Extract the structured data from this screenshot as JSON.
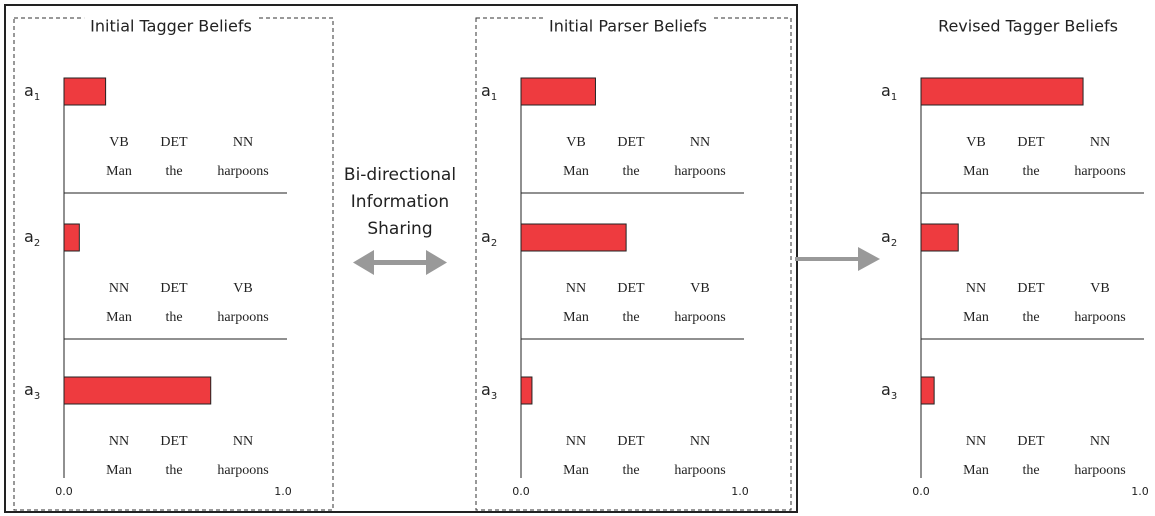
{
  "panels": [
    {
      "title": "Initial Tagger Beliefs",
      "xlim": [
        0,
        1
      ],
      "xticks": [
        {
          "value": 0,
          "label": "0.0"
        },
        {
          "value": 1,
          "label": "1.0"
        }
      ],
      "rows": [
        {
          "name": "a",
          "index": "1",
          "value": 0.19,
          "tags": [
            "VB",
            "DET",
            "NN"
          ],
          "words": [
            "Man",
            "the",
            "harpoons"
          ]
        },
        {
          "name": "a",
          "index": "2",
          "value": 0.07,
          "tags": [
            "NN",
            "DET",
            "VB"
          ],
          "words": [
            "Man",
            "the",
            "harpoons"
          ]
        },
        {
          "name": "a",
          "index": "3",
          "value": 0.67,
          "tags": [
            "NN",
            "DET",
            "NN"
          ],
          "words": [
            "Man",
            "the",
            "harpoons"
          ]
        }
      ]
    },
    {
      "title": "Initial Parser Beliefs",
      "xlim": [
        0,
        1
      ],
      "xticks": [
        {
          "value": 0,
          "label": "0.0"
        },
        {
          "value": 1,
          "label": "1.0"
        }
      ],
      "rows": [
        {
          "name": "a",
          "index": "1",
          "value": 0.34,
          "tags": [
            "VB",
            "DET",
            "NN"
          ],
          "words": [
            "Man",
            "the",
            "harpoons"
          ]
        },
        {
          "name": "a",
          "index": "2",
          "value": 0.48,
          "tags": [
            "NN",
            "DET",
            "VB"
          ],
          "words": [
            "Man",
            "the",
            "harpoons"
          ]
        },
        {
          "name": "a",
          "index": "3",
          "value": 0.05,
          "tags": [
            "NN",
            "DET",
            "NN"
          ],
          "words": [
            "Man",
            "the",
            "harpoons"
          ]
        }
      ]
    },
    {
      "title": "Revised Tagger Beliefs",
      "xlim": [
        0,
        1
      ],
      "xticks": [
        {
          "value": 0,
          "label": "0.0"
        },
        {
          "value": 1,
          "label": "1.0"
        }
      ],
      "rows": [
        {
          "name": "a",
          "index": "1",
          "value": 0.74,
          "tags": [
            "VB",
            "DET",
            "NN"
          ],
          "words": [
            "Man",
            "the",
            "harpoons"
          ]
        },
        {
          "name": "a",
          "index": "2",
          "value": 0.17,
          "tags": [
            "NN",
            "DET",
            "VB"
          ],
          "words": [
            "Man",
            "the",
            "harpoons"
          ]
        },
        {
          "name": "a",
          "index": "3",
          "value": 0.06,
          "tags": [
            "NN",
            "DET",
            "NN"
          ],
          "words": [
            "Man",
            "the",
            "harpoons"
          ]
        }
      ]
    }
  ],
  "middle": {
    "lines": [
      "Bi-directional",
      "Information",
      "Sharing"
    ]
  }
}
